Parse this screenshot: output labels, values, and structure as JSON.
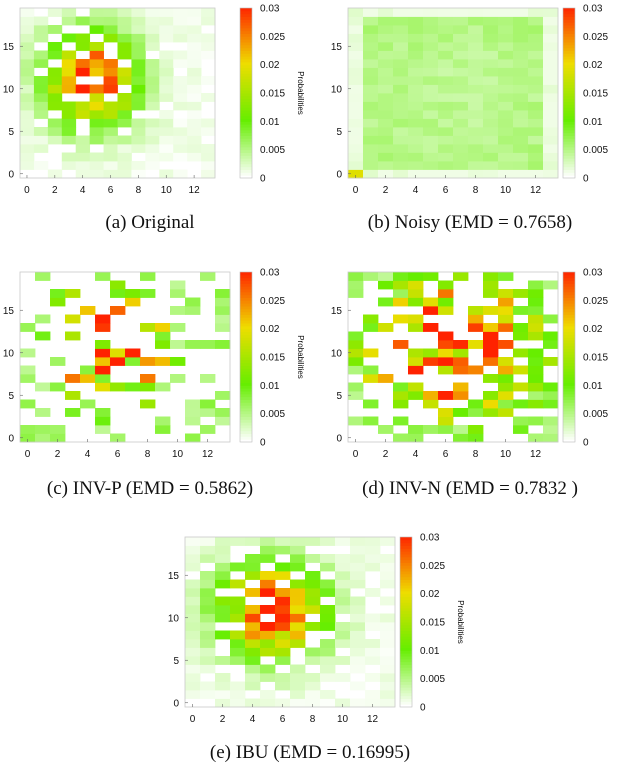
{
  "figure": {
    "colorbar": {
      "label": "Probabilities",
      "ticks": [
        "0.03",
        "0.025",
        "0.02",
        "0.015",
        "0.01",
        "0.005",
        "0"
      ],
      "range": [
        0,
        0.03
      ],
      "colors": [
        "#ffffff",
        "#66ee00",
        "#eedd00",
        "#ff2200"
      ]
    }
  },
  "chart_data": [
    {
      "type": "heatmap",
      "caption": "(a) Original",
      "xticks": [
        "0",
        "2",
        "4",
        "6",
        "8",
        "10",
        "12"
      ],
      "yticks": [
        "0",
        "5",
        "10",
        "15"
      ],
      "xlim": [
        -0.5,
        13.5
      ],
      "ylim": [
        -0.5,
        19.5
      ],
      "grid": false,
      "colorbar": "right",
      "pattern": "smooth",
      "peak": [
        4.6,
        11.2
      ],
      "spread": [
        2.2,
        3.8
      ],
      "seed": 11,
      "noise": 0.3,
      "sparsity": 0.18
    },
    {
      "type": "heatmap",
      "caption": "(b) Noisy (EMD = 0.7658)",
      "xticks": [
        "0",
        "2",
        "4",
        "6",
        "8",
        "10",
        "12"
      ],
      "yticks": [
        "0",
        "5",
        "10",
        "15"
      ],
      "xlim": [
        -0.5,
        13.5
      ],
      "ylim": [
        -0.5,
        19.5
      ],
      "grid": false,
      "colorbar": "right",
      "pattern": "uniform",
      "peak": [
        6.5,
        9.5
      ],
      "spread": [
        6.0,
        8.0
      ],
      "seed": 23,
      "noise": 0.08,
      "sparsity": 0
    },
    {
      "type": "heatmap",
      "caption": "(c) INV-P (EMD = 0.5862)",
      "xticks": [
        "0",
        "2",
        "4",
        "6",
        "8",
        "10",
        "12"
      ],
      "yticks": [
        "0",
        "5",
        "10",
        "15"
      ],
      "xlim": [
        -0.5,
        13.5
      ],
      "ylim": [
        -0.5,
        19.5
      ],
      "grid": false,
      "colorbar": "right",
      "pattern": "sparse",
      "peak": [
        5.5,
        10.5
      ],
      "spread": [
        3.0,
        5.0
      ],
      "seed": 37,
      "noise": 0.7,
      "sparsity": 0.62
    },
    {
      "type": "heatmap",
      "caption": "(d) INV-N (EMD = 0.7832 )",
      "xticks": [
        "0",
        "2",
        "4",
        "6",
        "8",
        "10",
        "12"
      ],
      "yticks": [
        "0",
        "5",
        "10",
        "15"
      ],
      "xlim": [
        -0.5,
        13.5
      ],
      "ylim": [
        -0.5,
        19.5
      ],
      "grid": false,
      "colorbar": "right",
      "pattern": "sparse",
      "peak": [
        6.5,
        10.5
      ],
      "spread": [
        4.5,
        6.5
      ],
      "seed": 53,
      "noise": 0.55,
      "sparsity": 0.45
    },
    {
      "type": "heatmap",
      "caption": "(e) IBU (EMD = 0.16995)",
      "xticks": [
        "0",
        "2",
        "4",
        "6",
        "8",
        "10",
        "12"
      ],
      "yticks": [
        "0",
        "5",
        "10",
        "15"
      ],
      "xlim": [
        -0.5,
        13.5
      ],
      "ylim": [
        -0.5,
        19.5
      ],
      "grid": false,
      "colorbar": "right",
      "pattern": "smooth",
      "peak": [
        5.3,
        11.0
      ],
      "spread": [
        2.4,
        3.8
      ],
      "seed": 71,
      "noise": 0.32,
      "sparsity": 0.2
    }
  ]
}
